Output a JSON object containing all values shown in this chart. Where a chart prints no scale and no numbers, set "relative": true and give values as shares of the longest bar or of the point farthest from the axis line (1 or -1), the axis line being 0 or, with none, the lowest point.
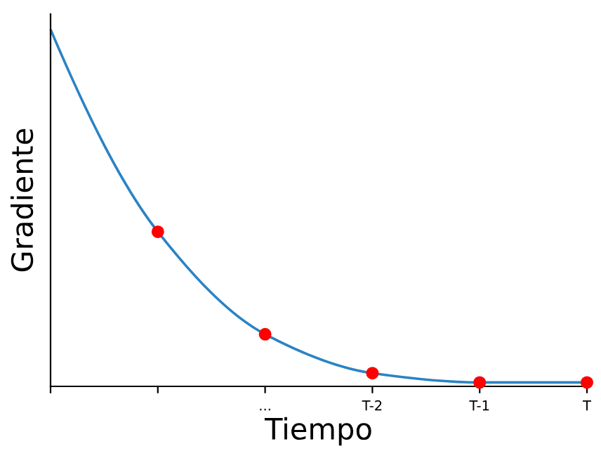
{
  "chart_data": {
    "type": "line",
    "relative": true,
    "xlabel": "Tiempo",
    "ylabel": "Gradiente",
    "categories": [
      null,
      null,
      "...",
      "T-2",
      "T-1",
      "T"
    ],
    "tick_labels": "x",
    "grid": false,
    "legend": false,
    "series": [
      {
        "color": "#2b83c4",
        "marker": "none",
        "line_style": "solid",
        "values": [
          1,
          0.433,
          0.146,
          0.037,
          0.011,
          0.011
        ]
      },
      {
        "type": "scatter",
        "color": "#ff0000",
        "marker": "circle",
        "values": [
          null,
          0.433,
          0.146,
          0.037,
          0.011,
          0.011
        ]
      }
    ]
  }
}
